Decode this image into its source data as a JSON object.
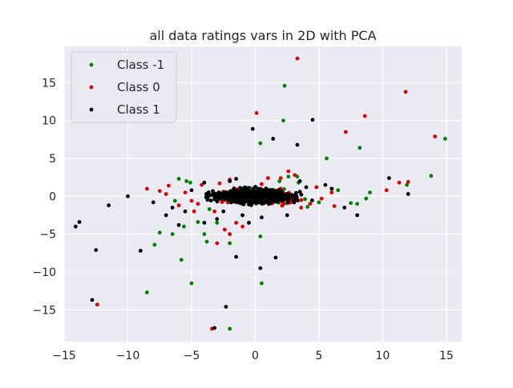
{
  "chart_data": {
    "type": "scatter",
    "title": "all data ratings vars in 2D with PCA",
    "xlabel": "",
    "ylabel": "",
    "xlim": [
      -15.0,
      16.2
    ],
    "ylim": [
      -19.2,
      19.8
    ],
    "xticks": [
      -15,
      -10,
      -5,
      0,
      5,
      10,
      15
    ],
    "xtick_labels": [
      "−15",
      "−10",
      "−5",
      "0",
      "5",
      "10",
      "15"
    ],
    "yticks": [
      -15,
      -10,
      -5,
      0,
      5,
      10,
      15
    ],
    "ytick_labels": [
      "−15",
      "−10",
      "−5",
      "0",
      "5",
      "10",
      "15"
    ],
    "grid": true,
    "legend_position": "top-left",
    "background_color": "#eaeaf2",
    "series": [
      {
        "name": "Class -1",
        "color": "#008000",
        "points": [
          [
            2.3,
            14.6
          ],
          [
            2.2,
            10.0
          ],
          [
            0.4,
            7.0
          ],
          [
            5.6,
            5.0
          ],
          [
            8.2,
            6.4
          ],
          [
            13.8,
            2.7
          ],
          [
            14.9,
            7.6
          ],
          [
            11.9,
            1.5
          ],
          [
            -8.5,
            -12.7
          ],
          [
            -5.0,
            -11.5
          ],
          [
            -2.0,
            -17.5
          ],
          [
            0.5,
            -11.5
          ],
          [
            0.4,
            -5.3
          ],
          [
            -4.5,
            -3.4
          ],
          [
            -5.8,
            -8.4
          ],
          [
            -7.9,
            -6.4
          ],
          [
            -7.5,
            -4.8
          ],
          [
            -6.5,
            -5.0
          ],
          [
            -5.6,
            -4.0
          ],
          [
            -4.0,
            -5.0
          ],
          [
            -3.0,
            -3.5
          ],
          [
            -2.0,
            -5.0
          ],
          [
            -3.8,
            -6.0
          ],
          [
            -2.0,
            -6.2
          ],
          [
            3.4,
            1.8
          ],
          [
            6.5,
            0.8
          ],
          [
            7.5,
            -0.9
          ],
          [
            8.0,
            -1.0
          ],
          [
            8.7,
            -0.3
          ],
          [
            9.0,
            0.5
          ],
          [
            5.0,
            -0.8
          ],
          [
            -6.0,
            2.3
          ],
          [
            -5.4,
            2.0
          ],
          [
            -5.1,
            1.8
          ],
          [
            1.9,
            2.0
          ],
          [
            2.6,
            2.6
          ],
          [
            3.3,
            2.6
          ],
          [
            -3.6,
            -1.7
          ],
          [
            4.1,
            -1.4
          ],
          [
            -6.3,
            -0.6
          ]
        ]
      },
      {
        "name": "Class 0",
        "color": "#e00000",
        "points": [
          [
            3.3,
            18.2
          ],
          [
            11.8,
            13.8
          ],
          [
            7.1,
            8.5
          ],
          [
            8.6,
            10.6
          ],
          [
            0.1,
            11.0
          ],
          [
            3.1,
            2.8
          ],
          [
            2.6,
            3.3
          ],
          [
            14.1,
            7.9
          ],
          [
            12.0,
            1.9
          ],
          [
            11.3,
            1.8
          ],
          [
            10.3,
            0.8
          ],
          [
            -12.4,
            -14.3
          ],
          [
            -3.4,
            -17.5
          ],
          [
            -3.0,
            -6.2
          ],
          [
            -2.4,
            -4.4
          ],
          [
            -2.0,
            -5.0
          ],
          [
            -1.5,
            -3.5
          ],
          [
            -1.0,
            -4.0
          ],
          [
            -8.5,
            1.0
          ],
          [
            -7.5,
            0.7
          ],
          [
            -7.0,
            0.3
          ],
          [
            -6.0,
            -1.2
          ],
          [
            -5.0,
            -0.6
          ],
          [
            -6.8,
            1.4
          ],
          [
            -4.5,
            -1.0
          ],
          [
            -5.5,
            0.5
          ],
          [
            -2.0,
            2.2
          ],
          [
            1.0,
            2.4
          ],
          [
            2.0,
            2.4
          ],
          [
            6.2,
            -1.3
          ],
          [
            6.0,
            0.5
          ],
          [
            5.2,
            -0.3
          ],
          [
            -4.2,
            1.5
          ],
          [
            0.5,
            1.6
          ],
          [
            3.6,
            -1.5
          ],
          [
            -4.8,
            -2.0
          ],
          [
            4.3,
            -1.0
          ],
          [
            -3.2,
            -2.0
          ],
          [
            4.8,
            1.2
          ],
          [
            -2.8,
            1.7
          ]
        ]
      },
      {
        "name": "Class 1",
        "color": "#000000",
        "points": [
          [
            -13.8,
            -3.4
          ],
          [
            -14.1,
            -4.0
          ],
          [
            -12.5,
            -7.1
          ],
          [
            -12.8,
            -13.7
          ],
          [
            -9.0,
            -7.2
          ],
          [
            -3.2,
            -17.4
          ],
          [
            -2.3,
            -14.6
          ],
          [
            -1.5,
            -8.0
          ],
          [
            0.4,
            -9.5
          ],
          [
            1.6,
            -8.1
          ],
          [
            -0.2,
            8.9
          ],
          [
            4.5,
            10.1
          ],
          [
            1.4,
            7.6
          ],
          [
            3.3,
            6.8
          ],
          [
            10.5,
            2.4
          ],
          [
            12.0,
            0.3
          ],
          [
            -10.0,
            0.0
          ],
          [
            -11.5,
            -1.2
          ],
          [
            -8.0,
            -0.8
          ],
          [
            -6.5,
            -1.5
          ],
          [
            -7.0,
            -2.5
          ],
          [
            -5.5,
            -2.0
          ],
          [
            -6.0,
            -3.8
          ],
          [
            -4.0,
            -3.5
          ],
          [
            -3.0,
            -3.0
          ],
          [
            -2.5,
            -2.0
          ],
          [
            -1.0,
            -2.5
          ],
          [
            6.0,
            1.0
          ],
          [
            7.0,
            -1.5
          ],
          [
            8.0,
            -2.5
          ],
          [
            5.5,
            1.5
          ],
          [
            4.0,
            1.2
          ],
          [
            -4.0,
            1.8
          ],
          [
            -2.0,
            2.0
          ],
          [
            0.5,
            -2.8
          ],
          [
            2.5,
            -2.5
          ],
          [
            -5.0,
            0.8
          ],
          [
            3.5,
            2.0
          ],
          [
            -1.5,
            2.3
          ],
          [
            -0.5,
            -3.5
          ]
        ]
      }
    ],
    "dense_cluster": {
      "description_counts": {
        "Class -1": 220,
        "Class 0": 300,
        "Class 1": 900
      },
      "center": [
        0.0,
        0.0
      ],
      "spread": [
        2.0,
        0.55
      ],
      "colors_order": [
        "Class -1",
        "Class 0",
        "Class 1"
      ]
    }
  }
}
